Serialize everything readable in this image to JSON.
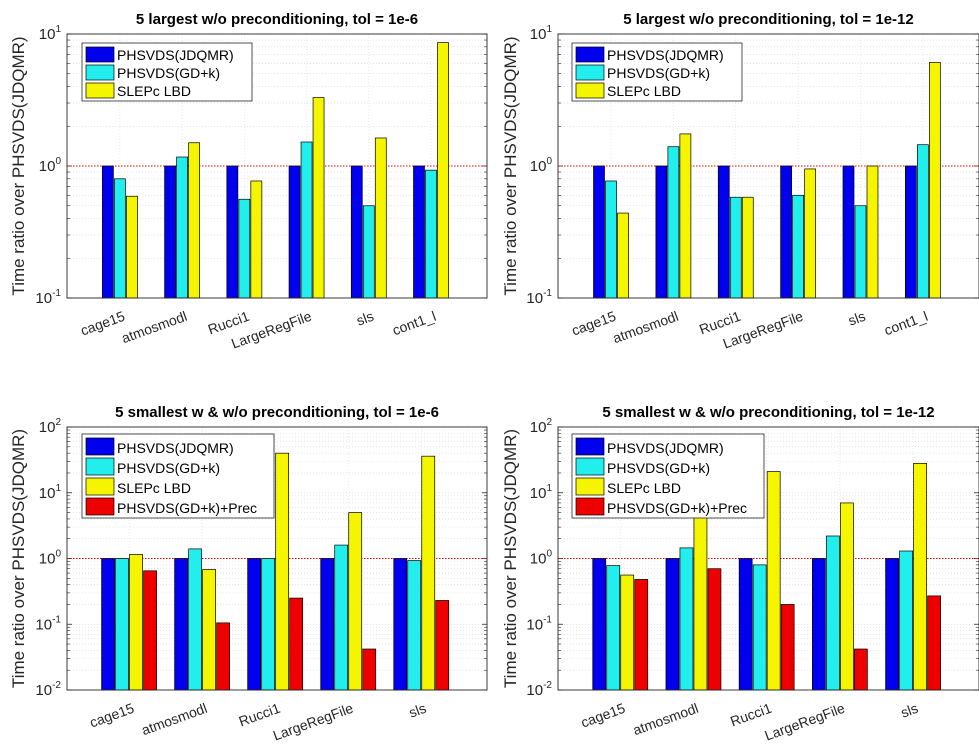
{
  "chart_data": [
    {
      "type": "bar",
      "title": "5 largest w/o preconditioning, tol = 1e-6",
      "ylabel": "Time ratio over PHSVDS(JDQMR)",
      "yscale": "log",
      "ylim": [
        0.1,
        10
      ],
      "yticks": [
        {
          "value": 0.1,
          "base": "10",
          "exp": "-1"
        },
        {
          "value": 1,
          "base": "10",
          "exp": "0"
        },
        {
          "value": 10,
          "base": "10",
          "exp": "1"
        }
      ],
      "categories": [
        "cage15",
        "atmosmodl",
        "Rucci1",
        "LargeRegFile",
        "sls",
        "cont1_l"
      ],
      "series": [
        {
          "name": "PHSVDS(JDQMR)",
          "color": "#0000ee",
          "values": [
            1,
            1,
            1,
            1,
            1,
            1
          ]
        },
        {
          "name": "PHSVDS(GD+k)",
          "color": "#22eeee",
          "values": [
            0.8,
            1.17,
            0.56,
            1.52,
            0.5,
            0.93
          ]
        },
        {
          "name": "SLEPc LBD",
          "color": "#f5f500",
          "values": [
            0.59,
            1.5,
            0.77,
            3.3,
            1.63,
            8.6
          ]
        }
      ],
      "reference_line": {
        "value": 1,
        "color": "#ff0000",
        "style": "dotted"
      },
      "grid": true,
      "legend": "top-left"
    },
    {
      "type": "bar",
      "title": "5 largest w/o preconditioning, tol = 1e-12",
      "ylabel": "Time ratio over PHSVDS(JDQMR)",
      "yscale": "log",
      "ylim": [
        0.1,
        10
      ],
      "yticks": [
        {
          "value": 0.1,
          "base": "10",
          "exp": "-1"
        },
        {
          "value": 1,
          "base": "10",
          "exp": "0"
        },
        {
          "value": 10,
          "base": "10",
          "exp": "1"
        }
      ],
      "categories": [
        "cage15",
        "atmosmodl",
        "Rucci1",
        "LargeRegFile",
        "sls",
        "cont1_l"
      ],
      "series": [
        {
          "name": "PHSVDS(JDQMR)",
          "color": "#0000ee",
          "values": [
            1,
            1,
            1,
            1,
            1,
            1
          ]
        },
        {
          "name": "PHSVDS(GD+k)",
          "color": "#22eeee",
          "values": [
            0.77,
            1.4,
            0.58,
            0.6,
            0.5,
            1.45
          ]
        },
        {
          "name": "SLEPc LBD",
          "color": "#f5f500",
          "values": [
            0.44,
            1.75,
            0.58,
            0.95,
            1.0,
            6.1
          ]
        }
      ],
      "reference_line": {
        "value": 1,
        "color": "#ff0000",
        "style": "dotted"
      },
      "grid": true,
      "legend": "top-left"
    },
    {
      "type": "bar",
      "title": "5 smallest w & w/o preconditioning, tol = 1e-6",
      "ylabel": "Time ratio over PHSVDS(JDQMR)",
      "yscale": "log",
      "ylim": [
        0.01,
        100
      ],
      "yticks": [
        {
          "value": 0.01,
          "base": "10",
          "exp": "-2"
        },
        {
          "value": 0.1,
          "base": "10",
          "exp": "-1"
        },
        {
          "value": 1,
          "base": "10",
          "exp": "0"
        },
        {
          "value": 10,
          "base": "10",
          "exp": "1"
        },
        {
          "value": 100,
          "base": "10",
          "exp": "2"
        }
      ],
      "categories": [
        "cage15",
        "atmosmodl",
        "Rucci1",
        "LargeRegFile",
        "sls"
      ],
      "series": [
        {
          "name": "PHSVDS(JDQMR)",
          "color": "#0000ee",
          "values": [
            1,
            1,
            1,
            1,
            1
          ]
        },
        {
          "name": "PHSVDS(GD+k)",
          "color": "#22eeee",
          "values": [
            1,
            1.4,
            1,
            1.6,
            0.93
          ]
        },
        {
          "name": "SLEPc LBD",
          "color": "#f5f500",
          "values": [
            1.15,
            0.68,
            40,
            5,
            36
          ]
        },
        {
          "name": "PHSVDS(GD+k)+Prec",
          "color": "#ee0000",
          "values": [
            0.65,
            0.105,
            0.25,
            0.042,
            0.23
          ]
        }
      ],
      "reference_line": {
        "value": 1,
        "color": "#ff0000",
        "style": "dotted"
      },
      "grid": true,
      "legend": "top-left"
    },
    {
      "type": "bar",
      "title": "5 smallest w & w/o preconditioning, tol = 1e-12",
      "ylabel": "Time ratio over PHSVDS(JDQMR)",
      "yscale": "log",
      "ylim": [
        0.01,
        100
      ],
      "yticks": [
        {
          "value": 0.01,
          "base": "10",
          "exp": "-2"
        },
        {
          "value": 0.1,
          "base": "10",
          "exp": "-1"
        },
        {
          "value": 1,
          "base": "10",
          "exp": "0"
        },
        {
          "value": 10,
          "base": "10",
          "exp": "1"
        },
        {
          "value": 100,
          "base": "10",
          "exp": "2"
        }
      ],
      "categories": [
        "cage15",
        "atmosmodl",
        "Rucci1",
        "LargeRegFile",
        "sls"
      ],
      "series": [
        {
          "name": "PHSVDS(JDQMR)",
          "color": "#0000ee",
          "values": [
            1,
            1,
            1,
            1,
            1
          ]
        },
        {
          "name": "PHSVDS(GD+k)",
          "color": "#22eeee",
          "values": [
            0.78,
            1.45,
            0.8,
            2.2,
            1.3
          ]
        },
        {
          "name": "SLEPc LBD",
          "color": "#f5f500",
          "values": [
            0.56,
            4.5,
            21,
            7,
            28
          ]
        },
        {
          "name": "PHSVDS(GD+k)+Prec",
          "color": "#ee0000",
          "values": [
            0.48,
            0.7,
            0.2,
            0.042,
            0.27
          ]
        }
      ],
      "reference_line": {
        "value": 1,
        "color": "#ff0000",
        "style": "dotted"
      },
      "grid": true,
      "legend": "top-left"
    }
  ]
}
